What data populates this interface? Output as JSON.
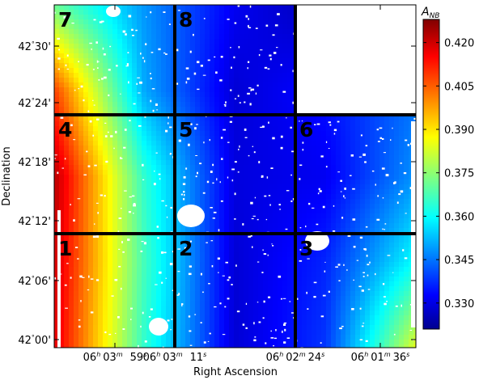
{
  "chart_data": {
    "type": "heatmap",
    "title": "",
    "xlabel": "Right Ascension",
    "ylabel": "Declination",
    "x_ticks": [
      {
        "base": "06",
        "h": "h",
        "b": "03",
        "m": "m",
        "c": "59",
        "s": "s"
      },
      {
        "base": "06",
        "h": "h",
        "b": "03",
        "m": "m",
        "c": "11",
        "s": "s"
      },
      {
        "base": "06",
        "h": "h",
        "b": "02",
        "m": "m",
        "c": "24",
        "s": "s"
      },
      {
        "base": "06",
        "h": "h",
        "b": "01",
        "m": "m",
        "c": "36",
        "s": "s"
      }
    ],
    "y_ticks": [
      {
        "deg": "42",
        "sym": "°",
        "min": "30'"
      },
      {
        "deg": "42",
        "sym": "°",
        "min": "24'"
      },
      {
        "deg": "42",
        "sym": "°",
        "min": "18'"
      },
      {
        "deg": "42",
        "sym": "°",
        "min": "12'"
      },
      {
        "deg": "42",
        "sym": "°",
        "min": "06'"
      },
      {
        "deg": "42",
        "sym": "°",
        "min": "00'"
      }
    ],
    "colorbar": {
      "label": "A",
      "label_sub": "NB",
      "range": [
        0.321,
        0.428
      ],
      "ticks": [
        "0.420",
        "0.405",
        "0.390",
        "0.375",
        "0.360",
        "0.345",
        "0.330"
      ],
      "colormap": "jet"
    },
    "panels": [
      {
        "label": "7",
        "row": 0,
        "col": 0,
        "has_data": true
      },
      {
        "label": "8",
        "row": 0,
        "col": 1,
        "has_data": true
      },
      {
        "label": "",
        "row": 0,
        "col": 2,
        "has_data": false
      },
      {
        "label": "4",
        "row": 1,
        "col": 0,
        "has_data": true
      },
      {
        "label": "5",
        "row": 1,
        "col": 1,
        "has_data": true
      },
      {
        "label": "6",
        "row": 1,
        "col": 2,
        "has_data": true
      },
      {
        "label": "1",
        "row": 2,
        "col": 0,
        "has_data": true
      },
      {
        "label": "2",
        "row": 2,
        "col": 1,
        "has_data": true
      },
      {
        "label": "3",
        "row": 2,
        "col": 2,
        "has_data": true
      }
    ],
    "value_grid": {
      "rows": [
        "top",
        "upper-middle",
        "middle",
        "lower-middle",
        "bottom"
      ],
      "cols": [
        "left",
        "center-left",
        "center",
        "center-right",
        "right"
      ],
      "values": [
        [
          0.372,
          0.35,
          0.333,
          0.326,
          0.33
        ],
        [
          0.408,
          0.352,
          0.33,
          0.336,
          0.346
        ],
        [
          0.422,
          0.366,
          0.331,
          0.333,
          0.35
        ],
        [
          0.42,
          0.368,
          0.33,
          0.338,
          0.362
        ],
        [
          0.418,
          0.366,
          0.33,
          0.34,
          0.385
        ]
      ]
    }
  }
}
